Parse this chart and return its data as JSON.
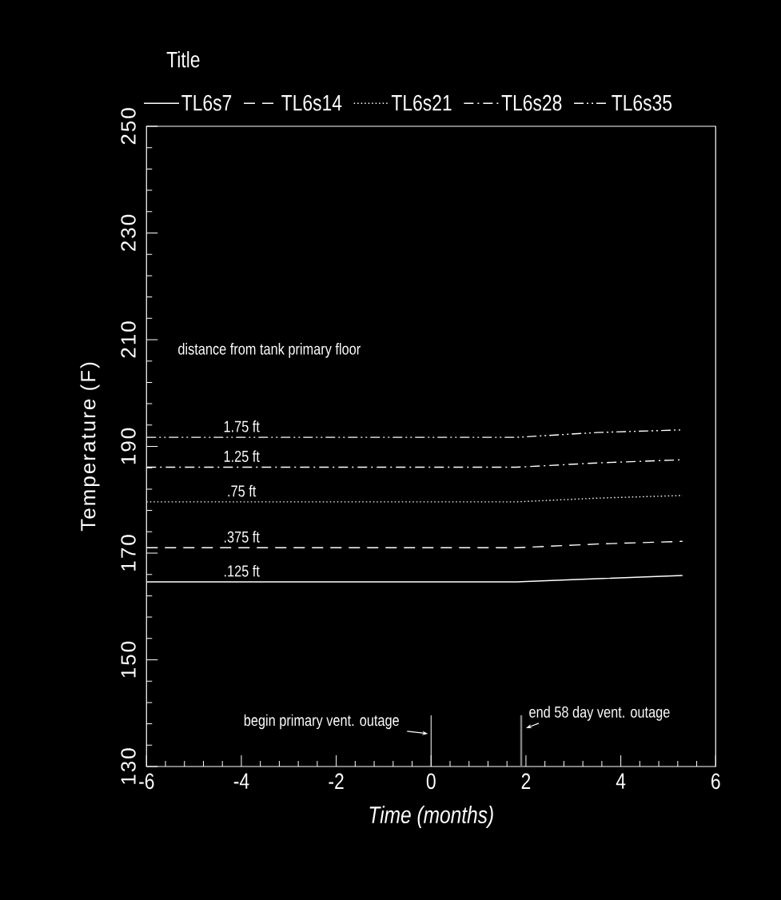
{
  "chart_data": {
    "type": "line",
    "title": "Title",
    "xlabel": "Time (months)",
    "ylabel": "Temperature (F)",
    "x": [
      -6,
      1.8,
      3.5,
      5.3
    ],
    "series": [
      {
        "name": "TL6s7",
        "color": "#ffffff",
        "line_style": "solid",
        "values": [
          164.6,
          164.6,
          165.2,
          165.8
        ]
      },
      {
        "name": "TL6s14",
        "color": "#ffffff",
        "line_style": "dashed",
        "values": [
          171.0,
          171.0,
          171.7,
          172.2
        ]
      },
      {
        "name": "TL6s21",
        "color": "#ffffff",
        "line_style": "dotted",
        "values": [
          179.6,
          179.6,
          180.3,
          180.8
        ]
      },
      {
        "name": "TL6s28",
        "color": "#ffffff",
        "line_style": "dashdot",
        "values": [
          186.1,
          186.1,
          186.9,
          187.5
        ]
      },
      {
        "name": "TL6s35",
        "color": "#ffffff",
        "line_style": "dashdotdot",
        "values": [
          191.7,
          191.7,
          192.6,
          193.1
        ]
      }
    ],
    "ref_lines": [
      {
        "axis": "x",
        "value": 0,
        "label": "begin primary vent. outage",
        "color": "#ffffff"
      },
      {
        "axis": "x",
        "value": 1.9,
        "label": "end 58 day vent. outage",
        "color": "#808080"
      }
    ],
    "xlim": [
      -6,
      6
    ],
    "xticks": [
      -6,
      -4,
      -2,
      0,
      2,
      4,
      6
    ],
    "ylim": [
      130,
      250
    ],
    "yticks": [
      130,
      150,
      170,
      190,
      210,
      230,
      250
    ],
    "legend": "top",
    "grid": false,
    "annotations": [
      "distance from tank primary floor",
      {
        "text": "1.75 ft",
        "y": 191.7
      },
      {
        "text": "1.25 ft",
        "y": 186.1
      },
      {
        "text": ".75 ft",
        "y": 179.6
      },
      {
        "text": ".375 ft",
        "y": 171.0
      },
      {
        "text": ".125 ft",
        "y": 164.6
      }
    ]
  }
}
